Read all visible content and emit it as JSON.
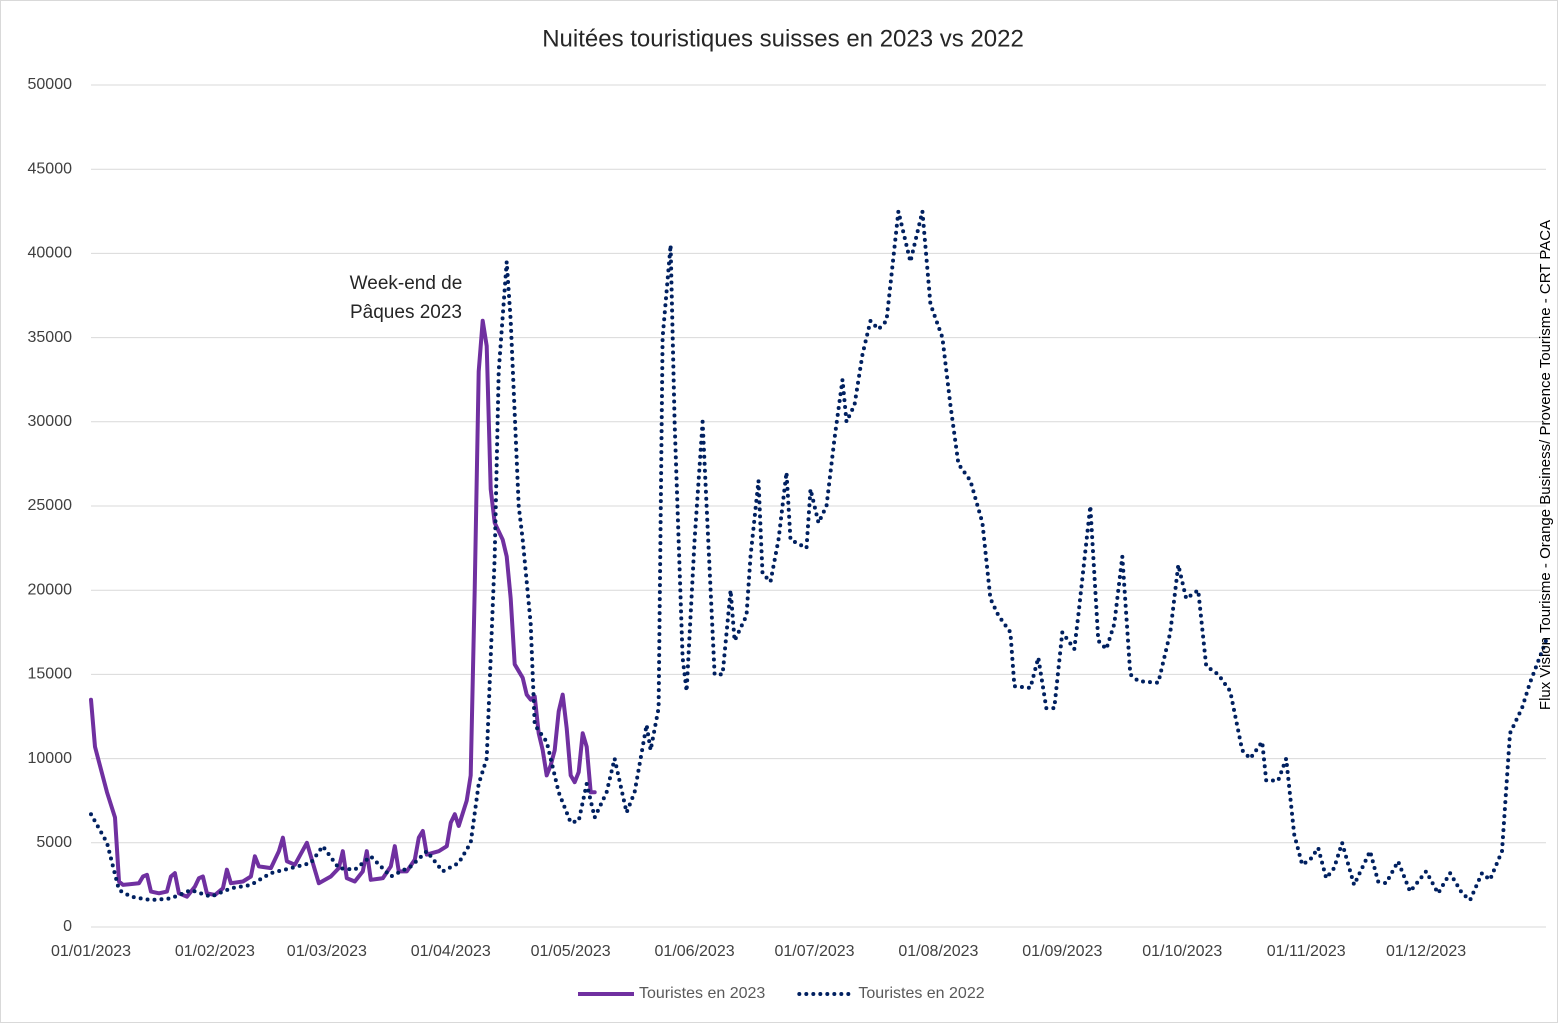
{
  "chart_data": {
    "type": "line",
    "title": "Nuitées touristiques suisses en 2023 vs 2022",
    "annotation": [
      "Week-end de",
      "Pâques 2023"
    ],
    "source": "Flux Vision Tourisme - Orange Business/ Provence Tourisme - CRT PACA",
    "xlim": [
      "01/01/2023",
      "31/12/2023"
    ],
    "xticks": [
      "01/01/2023",
      "01/02/2023",
      "01/03/2023",
      "01/04/2023",
      "01/05/2023",
      "01/06/2023",
      "01/07/2023",
      "01/08/2023",
      "01/09/2023",
      "01/10/2023",
      "01/11/2023",
      "01/12/2023"
    ],
    "ylim": [
      0,
      50000
    ],
    "yticks": [
      0,
      5000,
      10000,
      15000,
      20000,
      25000,
      30000,
      35000,
      40000,
      45000,
      50000
    ],
    "grid": true,
    "legend": "bottom",
    "series": [
      {
        "name": "Touristes en 2023",
        "color": "#7030a0",
        "style": "solid",
        "x": [
          "01/01/2023",
          "02/01/2023",
          "05/01/2023",
          "07/01/2023",
          "08/01/2023",
          "09/01/2023",
          "13/01/2023",
          "14/01/2023",
          "15/01/2023",
          "16/01/2023",
          "18/01/2023",
          "20/01/2023",
          "21/01/2023",
          "22/01/2023",
          "23/01/2023",
          "25/01/2023",
          "27/01/2023",
          "28/01/2023",
          "29/01/2023",
          "30/01/2023",
          "01/02/2023",
          "03/02/2023",
          "04/02/2023",
          "05/02/2023",
          "08/02/2023",
          "10/02/2023",
          "11/02/2023",
          "12/02/2023",
          "15/02/2023",
          "17/02/2023",
          "18/02/2023",
          "19/02/2023",
          "21/02/2023",
          "24/02/2023",
          "26/02/2023",
          "27/02/2023",
          "02/03/2023",
          "04/03/2023",
          "05/03/2023",
          "06/03/2023",
          "08/03/2023",
          "10/03/2023",
          "11/03/2023",
          "12/03/2023",
          "15/03/2023",
          "17/03/2023",
          "18/03/2023",
          "19/03/2023",
          "21/03/2023",
          "23/03/2023",
          "24/03/2023",
          "25/03/2023",
          "26/03/2023",
          "29/03/2023",
          "31/03/2023",
          "01/04/2023",
          "02/04/2023",
          "03/04/2023",
          "05/04/2023",
          "06/04/2023",
          "07/04/2023",
          "08/04/2023",
          "09/04/2023",
          "10/04/2023",
          "11/04/2023",
          "12/04/2023",
          "14/04/2023",
          "15/04/2023",
          "16/04/2023",
          "17/04/2023",
          "19/04/2023",
          "20/04/2023",
          "21/04/2023",
          "22/04/2023",
          "23/04/2023",
          "24/04/2023",
          "25/04/2023",
          "26/04/2023",
          "27/04/2023",
          "28/04/2023",
          "29/04/2023",
          "30/04/2023",
          "01/05/2023",
          "02/05/2023",
          "03/05/2023",
          "04/05/2023",
          "05/05/2023",
          "06/05/2023",
          "07/05/2023"
        ],
        "values": [
          13500,
          10700,
          8000,
          6500,
          2700,
          2500,
          2600,
          3000,
          3100,
          2100,
          2000,
          2100,
          3000,
          3200,
          2000,
          1800,
          2400,
          2900,
          3000,
          2000,
          1900,
          2300,
          3400,
          2600,
          2700,
          3000,
          4200,
          3600,
          3500,
          4500,
          5300,
          3900,
          3700,
          5000,
          3400,
          2600,
          3000,
          3500,
          4500,
          2900,
          2700,
          3300,
          4500,
          2800,
          2900,
          3600,
          4800,
          3300,
          3300,
          4000,
          5300,
          5700,
          4300,
          4500,
          4800,
          6200,
          6700,
          6000,
          7500,
          9000,
          20000,
          33000,
          36000,
          34500,
          26000,
          24000,
          23000,
          22000,
          19500,
          15600,
          14800,
          13800,
          13500,
          13700,
          11500,
          10500,
          9000,
          9600,
          10500,
          12800,
          13800,
          11800,
          9000,
          8600,
          9200,
          11500,
          10700,
          8000,
          8000
        ]
      },
      {
        "name": "Touristes en 2022",
        "color": "#002060",
        "style": "dotted",
        "x": [
          "01/01/2023",
          "05/01/2023",
          "08/01/2023",
          "11/01/2023",
          "16/01/2023",
          "21/01/2023",
          "26/01/2023",
          "31/01/2023",
          "05/02/2023",
          "10/02/2023",
          "15/02/2023",
          "20/02/2023",
          "25/02/2023",
          "28/02/2023",
          "04/03/2023",
          "08/03/2023",
          "12/03/2023",
          "17/03/2023",
          "22/03/2023",
          "26/03/2023",
          "30/03/2023",
          "03/04/2023",
          "06/04/2023",
          "08/04/2023",
          "10/04/2023",
          "12/04/2023",
          "13/04/2023",
          "15/04/2023",
          "16/04/2023",
          "18/04/2023",
          "19/04/2023",
          "21/04/2023",
          "22/04/2023",
          "25/04/2023",
          "28/04/2023",
          "01/05/2023",
          "03/05/2023",
          "05/05/2023",
          "07/05/2023",
          "10/05/2023",
          "12/05/2023",
          "15/05/2023",
          "17/05/2023",
          "20/05/2023",
          "21/05/2023",
          "23/05/2023",
          "24/05/2023",
          "26/05/2023",
          "27/05/2023",
          "29/05/2023",
          "30/05/2023",
          "01/06/2023",
          "03/06/2023",
          "05/06/2023",
          "06/06/2023",
          "08/06/2023",
          "10/06/2023",
          "11/06/2023",
          "14/06/2023",
          "15/06/2023",
          "17/06/2023",
          "18/06/2023",
          "20/06/2023",
          "22/06/2023",
          "24/06/2023",
          "25/06/2023",
          "29/06/2023",
          "30/06/2023",
          "02/07/2023",
          "04/07/2023",
          "06/07/2023",
          "08/07/2023",
          "09/07/2023",
          "11/07/2023",
          "13/07/2023",
          "15/07/2023",
          "17/07/2023",
          "19/07/2023",
          "22/07/2023",
          "23/07/2023",
          "25/07/2023",
          "26/07/2023",
          "28/07/2023",
          "30/07/2023",
          "02/08/2023",
          "04/08/2023",
          "06/08/2023",
          "09/08/2023",
          "12/08/2023",
          "14/08/2023",
          "16/08/2023",
          "19/08/2023",
          "20/08/2023",
          "24/08/2023",
          "26/08/2023",
          "28/08/2023",
          "30/08/2023",
          "01/09/2023",
          "04/09/2023",
          "05/09/2023",
          "08/09/2023",
          "10/09/2023",
          "12/09/2023",
          "14/09/2023",
          "16/09/2023",
          "18/09/2023",
          "20/09/2023",
          "25/09/2023",
          "28/09/2023",
          "30/09/2023",
          "02/10/2023",
          "05/10/2023",
          "07/10/2023",
          "10/10/2023",
          "13/10/2023",
          "16/10/2023",
          "18/10/2023",
          "21/10/2023",
          "22/10/2023",
          "25/10/2023",
          "27/10/2023",
          "29/10/2023",
          "31/10/2023",
          "02/11/2023",
          "04/11/2023",
          "06/11/2023",
          "08/11/2023",
          "10/11/2023",
          "13/11/2023",
          "17/11/2023",
          "19/11/2023",
          "21/11/2023",
          "24/11/2023",
          "27/11/2023",
          "01/12/2023",
          "04/12/2023",
          "07/12/2023",
          "10/12/2023",
          "12/12/2023",
          "15/12/2023",
          "17/12/2023",
          "20/12/2023",
          "22/12/2023",
          "25/12/2023",
          "27/12/2023",
          "31/12/2023"
        ],
        "values": [
          6700,
          5000,
          2200,
          1800,
          1600,
          1700,
          2200,
          1800,
          2300,
          2500,
          3200,
          3500,
          3800,
          4800,
          3500,
          3400,
          4200,
          3000,
          3600,
          4500,
          3300,
          3800,
          5000,
          8500,
          10000,
          22000,
          33000,
          39500,
          36000,
          25000,
          23000,
          18000,
          12000,
          11000,
          8000,
          6200,
          6300,
          8500,
          6500,
          8000,
          10000,
          6800,
          8000,
          12000,
          10500,
          13000,
          35000,
          40500,
          30000,
          16000,
          14000,
          23000,
          30000,
          20000,
          15000,
          15000,
          20000,
          17000,
          18500,
          22000,
          26500,
          21000,
          20500,
          23000,
          27000,
          23000,
          22500,
          26000,
          24000,
          25000,
          29000,
          32500,
          30000,
          31000,
          34000,
          36000,
          35500,
          36000,
          42500,
          41500,
          39500,
          40500,
          42500,
          37000,
          35000,
          31000,
          27500,
          26500,
          24000,
          19500,
          18500,
          17500,
          14300,
          14200,
          16000,
          13000,
          13000,
          17500,
          16500,
          18500,
          25000,
          17000,
          16500,
          18000,
          22000,
          15000,
          14600,
          14500,
          17500,
          21500,
          19500,
          20000,
          15500,
          15000,
          14000,
          10500,
          10000,
          11000,
          8700,
          8700,
          10000,
          5500,
          3700,
          4000,
          4700,
          2900,
          3500,
          5000,
          2500,
          4500,
          2700,
          2600,
          3900,
          2100,
          3300,
          2000,
          3200,
          2000,
          1600,
          3200,
          2800,
          4500,
          11500,
          13000,
          14500,
          17000
        ]
      }
    ]
  }
}
